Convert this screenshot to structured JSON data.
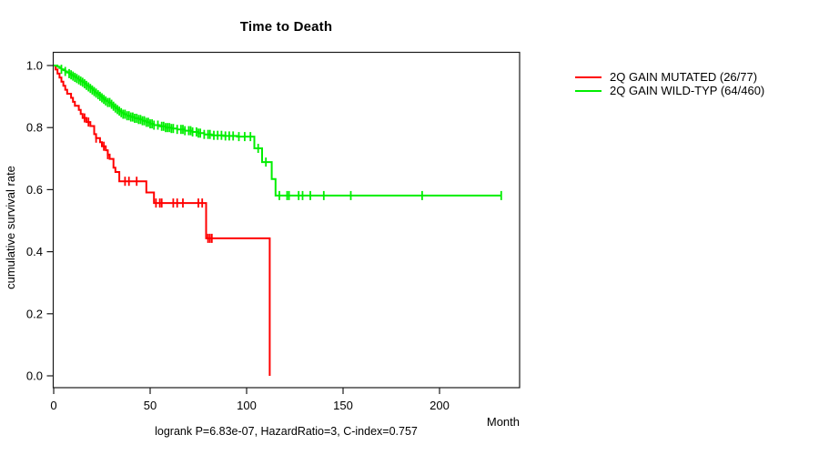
{
  "chart_data": {
    "type": "line",
    "subtype": "kaplan-meier-step-curves",
    "title": "Time to Death",
    "xlabel": "Month",
    "ylabel": "cumulative survival rate",
    "footnote": "logrank P=6.83e-07, HazardRatio=3, C-index=0.757",
    "x_ticks": [
      "0",
      "50",
      "100",
      "150",
      "200"
    ],
    "y_ticks": [
      "0.0",
      "0.2",
      "0.4",
      "0.6",
      "0.8",
      "1.0"
    ],
    "xlim": [
      0,
      241
    ],
    "ylim": [
      0,
      1
    ],
    "grid": false,
    "legend_position": "right-outside",
    "axis_color": "#1a1a1a",
    "series": [
      {
        "name": "2Q GAIN MUTATED (26/77)",
        "color": "#ff0000",
        "events": "26/77",
        "steps": [
          [
            0,
            1.0
          ],
          [
            1,
            0.987
          ],
          [
            2,
            0.974
          ],
          [
            3,
            0.961
          ],
          [
            4,
            0.948
          ],
          [
            5,
            0.935
          ],
          [
            6,
            0.922
          ],
          [
            7,
            0.909
          ],
          [
            9,
            0.896
          ],
          [
            10,
            0.883
          ],
          [
            11,
            0.87
          ],
          [
            13,
            0.857
          ],
          [
            14,
            0.844
          ],
          [
            15,
            0.831
          ],
          [
            17,
            0.818
          ],
          [
            19,
            0.805
          ],
          [
            21,
            0.779
          ],
          [
            22,
            0.766
          ],
          [
            24,
            0.753
          ],
          [
            25,
            0.74
          ],
          [
            27,
            0.727
          ],
          [
            28,
            0.713
          ],
          [
            29,
            0.699
          ],
          [
            31,
            0.671
          ],
          [
            32,
            0.657
          ],
          [
            34,
            0.627
          ],
          [
            48,
            0.591
          ],
          [
            52,
            0.557
          ],
          [
            79,
            0.443
          ],
          [
            112,
            0.0
          ]
        ],
        "censor_times": [
          16,
          18,
          22,
          26,
          28,
          37,
          39,
          43,
          53,
          55,
          56,
          62,
          64,
          67,
          75,
          77,
          80,
          81,
          82
        ]
      },
      {
        "name": "2Q GAIN WILD-TYP (64/460)",
        "color": "#00ee00",
        "events": "64/460",
        "steps": [
          [
            0,
            1.0
          ],
          [
            2,
            0.996
          ],
          [
            3,
            0.992
          ],
          [
            4,
            0.988
          ],
          [
            5,
            0.985
          ],
          [
            6,
            0.981
          ],
          [
            7,
            0.977
          ],
          [
            8,
            0.974
          ],
          [
            9,
            0.97
          ],
          [
            10,
            0.966
          ],
          [
            11,
            0.962
          ],
          [
            12,
            0.958
          ],
          [
            13,
            0.954
          ],
          [
            14,
            0.95
          ],
          [
            15,
            0.946
          ],
          [
            16,
            0.941
          ],
          [
            17,
            0.936
          ],
          [
            18,
            0.931
          ],
          [
            19,
            0.926
          ],
          [
            20,
            0.921
          ],
          [
            21,
            0.916
          ],
          [
            22,
            0.911
          ],
          [
            23,
            0.906
          ],
          [
            24,
            0.901
          ],
          [
            25,
            0.896
          ],
          [
            26,
            0.891
          ],
          [
            27,
            0.886
          ],
          [
            28,
            0.881
          ],
          [
            30,
            0.875
          ],
          [
            31,
            0.869
          ],
          [
            32,
            0.863
          ],
          [
            33,
            0.858
          ],
          [
            34,
            0.853
          ],
          [
            35,
            0.848
          ],
          [
            36,
            0.843
          ],
          [
            38,
            0.838
          ],
          [
            40,
            0.834
          ],
          [
            42,
            0.83
          ],
          [
            44,
            0.826
          ],
          [
            46,
            0.822
          ],
          [
            48,
            0.817
          ],
          [
            50,
            0.812
          ],
          [
            52,
            0.808
          ],
          [
            55,
            0.804
          ],
          [
            58,
            0.8
          ],
          [
            61,
            0.797
          ],
          [
            64,
            0.794
          ],
          [
            68,
            0.79
          ],
          [
            72,
            0.786
          ],
          [
            75,
            0.782
          ],
          [
            78,
            0.778
          ],
          [
            82,
            0.775
          ],
          [
            88,
            0.773
          ],
          [
            95,
            0.771
          ],
          [
            104,
            0.733
          ],
          [
            108,
            0.689
          ],
          [
            113,
            0.634
          ],
          [
            115,
            0.581
          ],
          [
            232,
            0.581
          ]
        ],
        "censor_times": [
          4,
          6,
          8,
          9,
          10,
          11,
          12,
          13,
          14,
          15,
          16,
          17,
          18,
          19,
          20,
          21,
          22,
          23,
          24,
          25,
          26,
          27,
          28,
          29,
          30,
          31,
          32,
          33,
          34,
          35,
          36,
          37,
          38,
          39,
          40,
          41,
          42,
          43,
          44,
          45,
          46,
          47,
          48,
          49,
          50,
          51,
          52,
          54,
          56,
          57,
          58,
          59,
          60,
          61,
          62,
          64,
          66,
          67,
          68,
          70,
          71,
          72,
          74,
          75,
          76,
          78,
          80,
          81,
          83,
          85,
          87,
          89,
          91,
          93,
          96,
          99,
          102,
          106,
          110,
          117,
          121,
          122,
          127,
          129,
          133,
          140,
          154,
          191,
          232
        ]
      }
    ]
  }
}
